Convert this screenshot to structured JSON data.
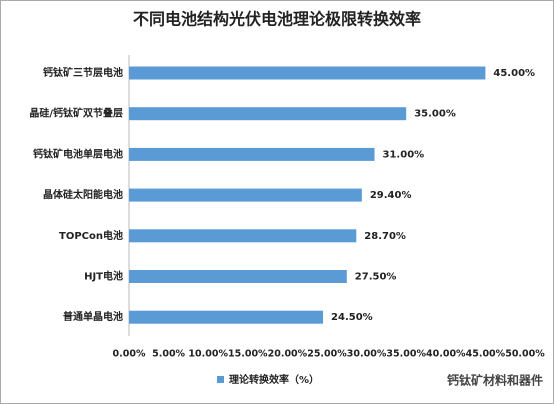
{
  "chart_data": {
    "type": "hbar",
    "title": "不同电池结构光伏电池理论极限转换效率",
    "categories": [
      "钙钛矿三节层电池",
      "晶硅/钙钛矿双节叠层",
      "钙钛矿电池单层电池",
      "晶体硅太阳能电池",
      "TOPCon电池",
      "HJT电池",
      "普通单晶电池"
    ],
    "series": [
      {
        "name": "理论转换效率（%）",
        "color": "#5b9bd5",
        "values": [
          45,
          35,
          31,
          29.4,
          28.7,
          27.5,
          24.5
        ],
        "value_labels": [
          "45.00%",
          "35.00%",
          "31.00%",
          "29.40%",
          "28.70%",
          "27.50%",
          "24.50%"
        ]
      }
    ],
    "xlim": [
      0,
      50
    ],
    "xticks": [
      {
        "value": 0,
        "label": "0.00%"
      },
      {
        "value": 5,
        "label": "5.00%"
      },
      {
        "value": 10,
        "label": "10.00%"
      },
      {
        "value": 15,
        "label": "15.00%"
      },
      {
        "value": 20,
        "label": "20.00%"
      },
      {
        "value": 25,
        "label": "25.00%"
      },
      {
        "value": 30,
        "label": "30.00%"
      },
      {
        "value": 35,
        "label": "35.00%"
      },
      {
        "value": 40,
        "label": "40.00%"
      },
      {
        "value": 45,
        "label": "45.00%"
      },
      {
        "value": 50,
        "label": "50.00%"
      }
    ],
    "grid": false,
    "legend": "bottom",
    "watermark": "钙钛矿材料和器件"
  }
}
